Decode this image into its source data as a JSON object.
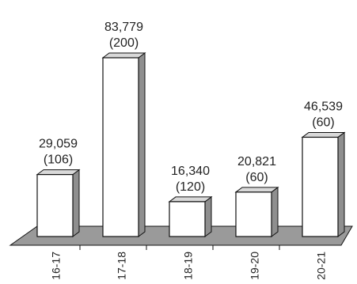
{
  "chart_data": {
    "type": "bar",
    "title": "",
    "xlabel": "",
    "ylabel": "",
    "categories": [
      "16-17",
      "17-18",
      "18-19",
      "19-20",
      "20-21"
    ],
    "values": [
      29059,
      83779,
      16340,
      20821,
      46539
    ],
    "value_labels": [
      "29,059",
      "83,779",
      "16,340",
      "20,821",
      "46,539"
    ],
    "count_labels": [
      "(106)",
      "(200)",
      "(120)",
      "(60)",
      "(60)"
    ],
    "ylim": [
      0,
      83779
    ],
    "grid": false,
    "legend": "none",
    "style": "3d",
    "colors": {
      "bar_front": "#ffffff",
      "bar_side": "#8f8f8f",
      "bar_top": "#d9d9d9",
      "floor": "#9a9a9a",
      "stroke": "#111111",
      "text": "#222222"
    }
  }
}
